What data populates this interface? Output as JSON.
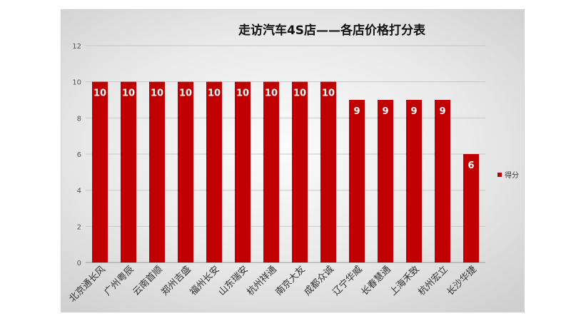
{
  "chart_data": {
    "type": "bar",
    "title": "走访汽车4S店——各店价格打分表",
    "xlabel": "",
    "ylabel": "",
    "categories": [
      "北京通长风",
      "广州粤辰",
      "云南首顺",
      "郑州吉盛",
      "福州长安",
      "山东瑞安",
      "杭州祥通",
      "南京大友",
      "成都众诚",
      "辽宁华威",
      "长春慧通",
      "上海禾致",
      "杭州宏立",
      "长沙华捷"
    ],
    "series": [
      {
        "name": "得分",
        "values": [
          10,
          10,
          10,
          10,
          10,
          10,
          10,
          10,
          10,
          9,
          9,
          9,
          9,
          6
        ]
      }
    ],
    "ylim": [
      0,
      12
    ],
    "yticks": [
      0,
      2,
      4,
      6,
      8,
      10,
      12
    ],
    "grid": true,
    "legend": "right",
    "data_labels": true,
    "colors": {
      "bar": "#c00000",
      "label": "#ffffff"
    }
  }
}
